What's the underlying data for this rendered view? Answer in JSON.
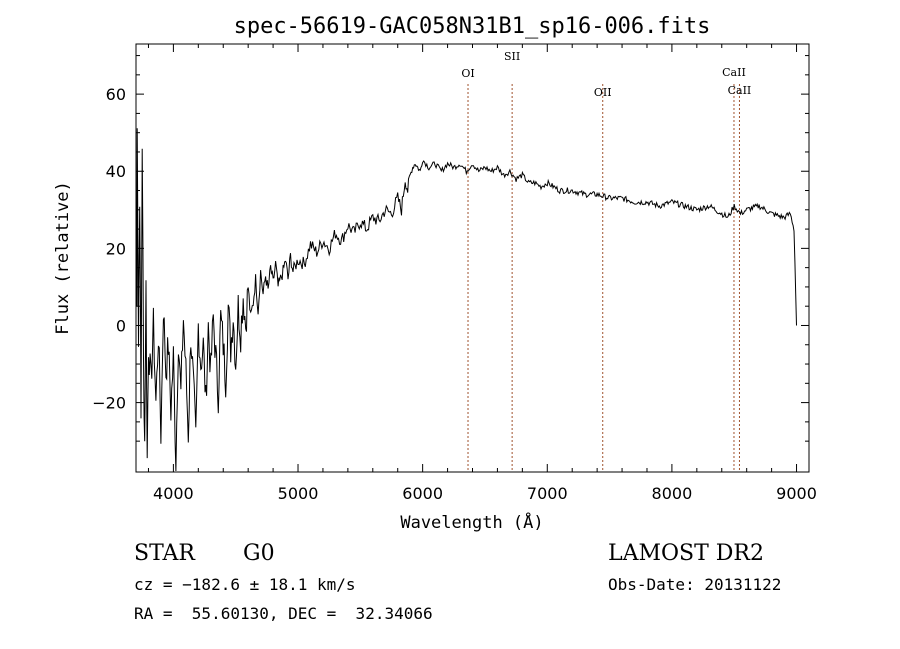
{
  "chart_data": {
    "type": "line",
    "title": "spec-56619-GAC058N31B1_sp16-006.fits",
    "xlabel": "Wavelength (Å)",
    "ylabel": "Flux (relative)",
    "xlim": [
      3700,
      9100
    ],
    "ylim": [
      -38,
      73
    ],
    "x_ticks": [
      4000,
      5000,
      6000,
      7000,
      8000,
      9000
    ],
    "y_ticks": [
      -20,
      0,
      20,
      40,
      60
    ],
    "line_color": "#000000",
    "marker_color": "#a0522d",
    "grid": false,
    "series": [
      {
        "points": [
          [
            3700,
            5
          ],
          [
            3710,
            55
          ],
          [
            3720,
            -5
          ],
          [
            3730,
            35
          ],
          [
            3740,
            -25
          ],
          [
            3750,
            48
          ],
          [
            3760,
            -10
          ],
          [
            3770,
            -30
          ],
          [
            3780,
            10
          ],
          [
            3790,
            -35
          ],
          [
            3800,
            -5
          ],
          [
            3820,
            -15
          ],
          [
            3840,
            0
          ],
          [
            3860,
            -20
          ],
          [
            3880,
            -2
          ],
          [
            3900,
            -28
          ],
          [
            3920,
            5
          ],
          [
            3940,
            -12
          ],
          [
            3960,
            -5
          ],
          [
            3980,
            -22
          ],
          [
            4000,
            -8
          ],
          [
            4020,
            -36
          ],
          [
            4040,
            -3
          ],
          [
            4060,
            -18
          ],
          [
            4080,
            2
          ],
          [
            4100,
            -12
          ],
          [
            4120,
            -28
          ],
          [
            4140,
            -2
          ],
          [
            4160,
            -15
          ],
          [
            4180,
            -30
          ],
          [
            4200,
            0
          ],
          [
            4220,
            -10
          ],
          [
            4240,
            -5
          ],
          [
            4260,
            -20
          ],
          [
            4280,
            0
          ],
          [
            4300,
            -12
          ],
          [
            4320,
            2
          ],
          [
            4340,
            -8
          ],
          [
            4360,
            -18
          ],
          [
            4380,
            2
          ],
          [
            4400,
            -5
          ],
          [
            4420,
            -14
          ],
          [
            4440,
            5
          ],
          [
            4460,
            -6
          ],
          [
            4480,
            3
          ],
          [
            4500,
            -10
          ],
          [
            4520,
            5
          ],
          [
            4540,
            -2
          ],
          [
            4560,
            8
          ],
          [
            4580,
            0
          ],
          [
            4600,
            10
          ],
          [
            4620,
            2
          ],
          [
            4640,
            6
          ],
          [
            4660,
            12
          ],
          [
            4680,
            4
          ],
          [
            4700,
            14
          ],
          [
            4720,
            8
          ],
          [
            4740,
            13
          ],
          [
            4760,
            9
          ],
          [
            4780,
            15
          ],
          [
            4800,
            11
          ],
          [
            4820,
            16
          ],
          [
            4840,
            10
          ],
          [
            4860,
            12
          ],
          [
            4880,
            14
          ],
          [
            4900,
            17
          ],
          [
            4920,
            12
          ],
          [
            4940,
            18
          ],
          [
            4960,
            14
          ],
          [
            5000,
            17
          ],
          [
            5050,
            16
          ],
          [
            5100,
            21
          ],
          [
            5150,
            19
          ],
          [
            5200,
            22
          ],
          [
            5250,
            20
          ],
          [
            5300,
            24
          ],
          [
            5350,
            22
          ],
          [
            5400,
            26
          ],
          [
            5450,
            24
          ],
          [
            5500,
            27
          ],
          [
            5550,
            25
          ],
          [
            5600,
            28
          ],
          [
            5650,
            27
          ],
          [
            5700,
            30
          ],
          [
            5750,
            29
          ],
          [
            5800,
            33
          ],
          [
            5830,
            30
          ],
          [
            5860,
            38
          ],
          [
            5880,
            35
          ],
          [
            5900,
            39
          ],
          [
            5920,
            41
          ],
          [
            5940,
            42
          ],
          [
            5960,
            41
          ],
          [
            5980,
            40
          ],
          [
            6000,
            43
          ],
          [
            6050,
            41
          ],
          [
            6100,
            42
          ],
          [
            6150,
            40
          ],
          [
            6200,
            42
          ],
          [
            6250,
            41
          ],
          [
            6300,
            42
          ],
          [
            6350,
            40
          ],
          [
            6400,
            42
          ],
          [
            6450,
            40
          ],
          [
            6500,
            41
          ],
          [
            6550,
            40
          ],
          [
            6600,
            41
          ],
          [
            6650,
            39
          ],
          [
            6700,
            40
          ],
          [
            6750,
            38
          ],
          [
            6800,
            39
          ],
          [
            6850,
            37
          ],
          [
            6900,
            37
          ],
          [
            6950,
            36
          ],
          [
            7000,
            37
          ],
          [
            7100,
            35
          ],
          [
            7200,
            35
          ],
          [
            7300,
            34
          ],
          [
            7400,
            34
          ],
          [
            7500,
            33
          ],
          [
            7600,
            33
          ],
          [
            7700,
            32
          ],
          [
            7800,
            32
          ],
          [
            7900,
            31
          ],
          [
            8000,
            32
          ],
          [
            8100,
            31
          ],
          [
            8200,
            30
          ],
          [
            8300,
            31
          ],
          [
            8400,
            29
          ],
          [
            8450,
            28
          ],
          [
            8500,
            31
          ],
          [
            8550,
            29
          ],
          [
            8600,
            30
          ],
          [
            8700,
            31
          ],
          [
            8800,
            29
          ],
          [
            8900,
            28
          ],
          [
            8950,
            29
          ],
          [
            8980,
            25
          ],
          [
            9000,
            0
          ]
        ]
      }
    ],
    "lines": [
      {
        "label": "OI",
        "x": 6364
      },
      {
        "label": "SII",
        "x": 6718
      },
      {
        "label": "OII",
        "x": 7445
      },
      {
        "label": "CaII",
        "x": 8498
      },
      {
        "label": "CaII",
        "x": 8542
      }
    ]
  },
  "info": {
    "object_class": "STAR",
    "subclass": "G0",
    "survey": "LAMOST DR2",
    "cz": "cz = −182.6 ± 18.1 km/s",
    "obs_date": "Obs-Date: 20131122",
    "coords": "RA =  55.60130, DEC =  32.34066"
  }
}
